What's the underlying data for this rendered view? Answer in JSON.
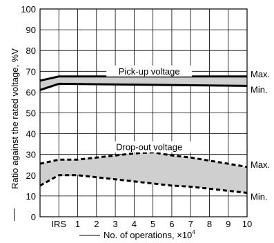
{
  "chart_data": {
    "type": "area",
    "title": "",
    "xlabel": "No. of operations, ×10",
    "xlabel_exponent": "4",
    "ylabel": "Ratio against the rated voltage, %V",
    "ylim": [
      0,
      100
    ],
    "yticks": [
      0,
      10,
      20,
      30,
      40,
      50,
      60,
      70,
      80,
      90,
      100
    ],
    "xticks": [
      {
        "label": "IRS",
        "x": 0
      },
      {
        "label": "1",
        "x": 1
      },
      {
        "label": "2",
        "x": 2
      },
      {
        "label": "3",
        "x": 3
      },
      {
        "label": "4",
        "x": 4
      },
      {
        "label": "5",
        "x": 5
      },
      {
        "label": "6",
        "x": 6
      },
      {
        "label": "7",
        "x": 7
      },
      {
        "label": "8",
        "x": 8
      },
      {
        "label": "9",
        "x": 9
      },
      {
        "label": "10",
        "x": 10
      }
    ],
    "xlim": [
      -1,
      10
    ],
    "grid": true,
    "bands": [
      {
        "name": "Pick-up voltage",
        "style": "solid",
        "max": {
          "label": "Max.",
          "points": [
            [
              -1,
              65.5
            ],
            [
              0,
              67.5
            ],
            [
              10,
              67.5
            ]
          ]
        },
        "min": {
          "label": "Min.",
          "points": [
            [
              -1,
              61
            ],
            [
              0,
              64
            ],
            [
              10,
              63
            ]
          ]
        }
      },
      {
        "name": "Drop-out voltage",
        "style": "dashed",
        "max": {
          "label": "Max.",
          "points": [
            [
              -1,
              25.5
            ],
            [
              0,
              27.5
            ],
            [
              1,
              27.5
            ],
            [
              2,
              28.5
            ],
            [
              3,
              29.5
            ],
            [
              4,
              30.5
            ],
            [
              5,
              31
            ],
            [
              6,
              29.5
            ],
            [
              7,
              28.5
            ],
            [
              8,
              27
            ],
            [
              9,
              25.5
            ],
            [
              10,
              24
            ]
          ]
        },
        "min": {
          "label": "Min.",
          "points": [
            [
              -1,
              15
            ],
            [
              0,
              20
            ],
            [
              1,
              20
            ],
            [
              2,
              19
            ],
            [
              3,
              18
            ],
            [
              4,
              17
            ],
            [
              5,
              16
            ],
            [
              6,
              15
            ],
            [
              7,
              14.5
            ],
            [
              8,
              13.5
            ],
            [
              9,
              12.5
            ],
            [
              10,
              11.5
            ]
          ]
        }
      }
    ]
  },
  "colors": {
    "band_fill": "#cfcfcf",
    "line": "#000000",
    "grid": "#000000"
  }
}
